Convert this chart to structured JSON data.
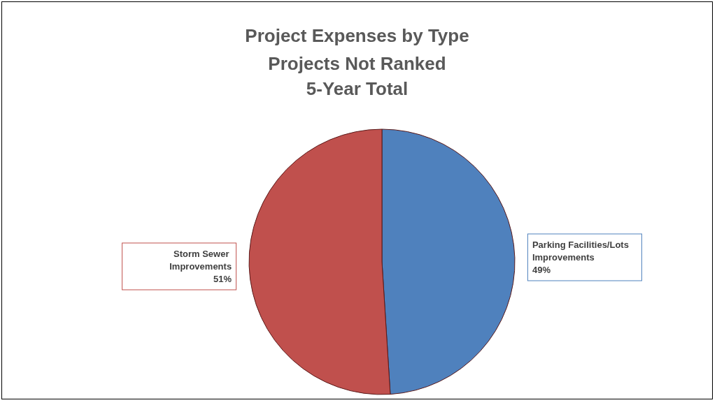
{
  "chart_data": {
    "type": "pie",
    "title": "Project Expenses by Type",
    "subtitle": "Projects Not Ranked\n5-Year Total",
    "categories": [
      "Parking Facilities/Lots Improvements",
      "Storm Sewer Improvements"
    ],
    "values": [
      49,
      51
    ],
    "colors": [
      "#4f81bd",
      "#c0504d"
    ],
    "value_labels": [
      "49%",
      "51%"
    ],
    "legend": false
  }
}
